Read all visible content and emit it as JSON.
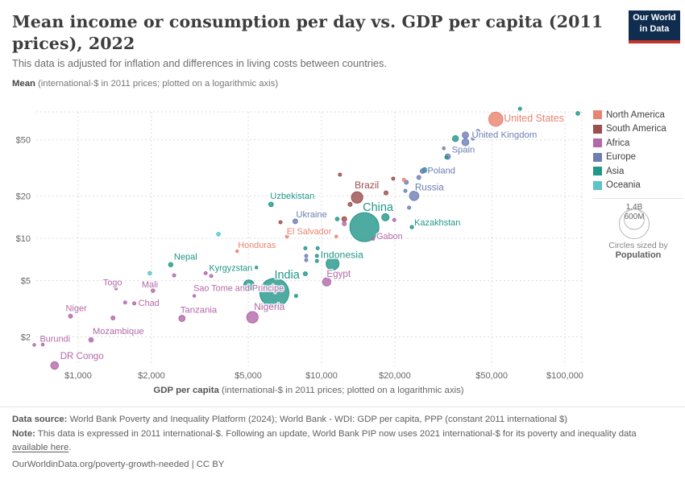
{
  "header": {
    "title": "Mean income or consumption per day vs. GDP per capita (2011 prices), 2022",
    "subtitle": "This data is adjusted for inflation and differences in living costs between countries.",
    "logo": {
      "line1": "Our World",
      "line2": "in Data",
      "bg": "#102d4f",
      "accent": "#c0362d"
    }
  },
  "y_axis_header": {
    "bold": "Mean",
    "rest": " (international-$ in 2011 prices; plotted on a logarithmic axis)"
  },
  "x_axis_title": {
    "bold": "GDP per capita",
    "rest": " (international-$ in 2011 prices; plotted on a logarithmic axis)"
  },
  "legend": {
    "items": [
      {
        "label": "North America",
        "color": "#E8836F"
      },
      {
        "label": "South America",
        "color": "#9A4E4E"
      },
      {
        "label": "Africa",
        "color": "#B368A9"
      },
      {
        "label": "Europe",
        "color": "#6D7EB5"
      },
      {
        "label": "Asia",
        "color": "#23968A"
      },
      {
        "label": "Oceania",
        "color": "#5CC3C7"
      }
    ]
  },
  "size_legend": {
    "outer_label": "1.4B",
    "inner_label": "600M",
    "caption": "Circles sized by",
    "caption_bold": "Population"
  },
  "footer": {
    "source_bold": "Data source:",
    "source_rest": " World Bank Poverty and Inequality Platform (2024); World Bank - WDI: GDP per capita, PPP (constant 2011 international $)",
    "note_bold": "Note:",
    "note_before_link": " This data is expressed in 2011 international-$. Following an update, World Bank PIP now uses 2021 international-$ for its poverty and inequality data ",
    "note_link": "available here",
    "note_after_link": ".",
    "url_line": "OurWorldinData.org/poverty-growth-needed | CC BY"
  },
  "chart_data": {
    "type": "scatter",
    "title": "Mean income or consumption per day vs. GDP per capita (2011 prices), 2022",
    "xlabel": "GDP per capita (international-$ in 2011 prices; plotted on a logarithmic axis)",
    "ylabel": "Mean (international-$ in 2011 prices; plotted on a logarithmic axis)",
    "x_scale": "log",
    "y_scale": "log",
    "x_range": [
      670,
      117000
    ],
    "y_range": [
      1.1,
      80
    ],
    "x_ticks": {
      "values": [
        1000,
        2000,
        5000,
        10000,
        20000,
        50000,
        100000
      ],
      "labels": [
        "$1,000",
        "$2,000",
        "$5,000",
        "$10,000",
        "$20,000",
        "$50,000",
        "$100,000"
      ]
    },
    "y_ticks": {
      "values": [
        2,
        5,
        10,
        20,
        50
      ],
      "labels": [
        "$2",
        "$5",
        "$10",
        "$20",
        "$50"
      ]
    },
    "grid": "dashed",
    "legend_position": "right",
    "size_by": "Population",
    "points": [
      {
        "label": "United States",
        "continent": "North America",
        "gdp": 52000,
        "mean": 70,
        "population": 335,
        "labelOffset": [
          10,
          3
        ],
        "labelAnchor": "start"
      },
      {
        "label": "United Kingdom",
        "continent": "Europe",
        "gdp": 39000,
        "mean": 54,
        "population": 67,
        "labelOffset": [
          8,
          3
        ],
        "labelAnchor": "start"
      },
      {
        "label": "Spain",
        "continent": "Europe",
        "gdp": 33000,
        "mean": 38,
        "population": 47.5,
        "labelOffset": [
          5,
          -5
        ],
        "labelAnchor": "start"
      },
      {
        "label": "Poland",
        "continent": "Europe",
        "gdp": 26000,
        "mean": 30,
        "population": 37,
        "labelOffset": [
          6,
          3
        ],
        "labelAnchor": "start"
      },
      {
        "label": "Russia",
        "continent": "Europe",
        "gdp": 24000,
        "mean": 20,
        "population": 144,
        "labelOffset": [
          1,
          -7
        ],
        "labelAnchor": "start"
      },
      {
        "label": "Brazil",
        "continent": "South America",
        "gdp": 14000,
        "mean": 19.5,
        "population": 215,
        "labelOffset": [
          -3,
          -11
        ],
        "labelAnchor": "start"
      },
      {
        "label": "China",
        "continent": "Asia",
        "gdp": 15000,
        "mean": 12,
        "population": 1412,
        "labelOffset": [
          -2,
          -20
        ],
        "labelAnchor": "start"
      },
      {
        "label": "Kazakhstan",
        "continent": "Asia",
        "gdp": 23500,
        "mean": 12,
        "population": 20,
        "labelOffset": [
          3,
          -2
        ],
        "labelAnchor": "start"
      },
      {
        "label": "Uzbekistan",
        "continent": "Asia",
        "gdp": 6200,
        "mean": 17.4,
        "population": 35,
        "labelOffset": [
          -1,
          -7
        ],
        "labelAnchor": "start"
      },
      {
        "label": "Ukraine",
        "continent": "Europe",
        "gdp": 7800,
        "mean": 13.2,
        "population": 38,
        "labelOffset": [
          1,
          -5
        ],
        "labelAnchor": "start"
      },
      {
        "label": "El Salvador",
        "continent": "North America",
        "gdp": 11500,
        "mean": 10.3,
        "population": 6.3,
        "labelOffset": [
          -6,
          -3
        ],
        "labelAnchor": "end"
      },
      {
        "label": "Honduras",
        "continent": "North America",
        "gdp": 4500,
        "mean": 8.1,
        "population": 10.4,
        "labelOffset": [
          1,
          -4
        ],
        "labelAnchor": "start"
      },
      {
        "label": "Gabon",
        "continent": "Africa",
        "gdp": 16300,
        "mean": 9.9,
        "population": 2.4,
        "labelOffset": [
          4,
          0
        ],
        "labelAnchor": "start"
      },
      {
        "label": "Indonesia",
        "continent": "Asia",
        "gdp": 11100,
        "mean": 6.6,
        "population": 275,
        "labelOffset": [
          -15,
          -7
        ],
        "labelAnchor": "start"
      },
      {
        "label": "Egypt",
        "continent": "Africa",
        "gdp": 10500,
        "mean": 4.9,
        "population": 111,
        "labelOffset": [
          0,
          -6
        ],
        "labelAnchor": "start"
      },
      {
        "label": "India",
        "continent": "Asia",
        "gdp": 6400,
        "mean": 4.1,
        "population": 1417,
        "labelOffset": [
          0,
          -18
        ],
        "labelAnchor": "start"
      },
      {
        "label": "Nepal",
        "continent": "Asia",
        "gdp": 2400,
        "mean": 6.5,
        "population": 30.5,
        "labelOffset": [
          4,
          -6
        ],
        "labelAnchor": "start"
      },
      {
        "label": "Kyrgyzstan",
        "continent": "Asia",
        "gdp": 5400,
        "mean": 6.2,
        "population": 7,
        "labelOffset": [
          -5,
          4
        ],
        "labelAnchor": "end"
      },
      {
        "label": "Togo",
        "continent": "Africa",
        "gdp": 1430,
        "mean": 4.4,
        "population": 8.8,
        "labelOffset": [
          -16,
          -4
        ],
        "labelAnchor": "start"
      },
      {
        "label": "Mali",
        "continent": "Africa",
        "gdp": 2030,
        "mean": 4.25,
        "population": 22.6,
        "labelOffset": [
          -14,
          -4
        ],
        "labelAnchor": "start"
      },
      {
        "label": "Sao Tome and Principe",
        "continent": "Africa",
        "gdp": 3000,
        "mean": 3.9,
        "population": 0.23,
        "labelOffset": [
          -1,
          -6
        ],
        "labelAnchor": "start"
      },
      {
        "label": "Chad",
        "continent": "Africa",
        "gdp": 1700,
        "mean": 3.45,
        "population": 17.7,
        "labelOffset": [
          5,
          3
        ],
        "labelAnchor": "start"
      },
      {
        "label": "Niger",
        "continent": "Africa",
        "gdp": 930,
        "mean": 2.8,
        "population": 26,
        "labelOffset": [
          -6,
          -6
        ],
        "labelAnchor": "start"
      },
      {
        "label": "Tanzania",
        "continent": "Africa",
        "gdp": 2670,
        "mean": 2.7,
        "population": 65,
        "labelOffset": [
          -2,
          -7
        ],
        "labelAnchor": "start"
      },
      {
        "label": "Nigeria",
        "continent": "Africa",
        "gdp": 5200,
        "mean": 2.75,
        "population": 218,
        "labelOffset": [
          2,
          -9
        ],
        "labelAnchor": "start"
      },
      {
        "label": "Mozambique",
        "continent": "Africa",
        "gdp": 1130,
        "mean": 1.9,
        "population": 33,
        "labelOffset": [
          2,
          -7
        ],
        "labelAnchor": "start"
      },
      {
        "label": "Burundi",
        "continent": "Africa",
        "gdp": 660,
        "mean": 1.75,
        "population": 13,
        "labelOffset": [
          7,
          -4
        ],
        "labelAnchor": "start"
      },
      {
        "label": "DR Congo",
        "continent": "Africa",
        "gdp": 800,
        "mean": 1.25,
        "population": 99,
        "labelOffset": [
          7,
          -8
        ],
        "labelAnchor": "start"
      },
      {
        "label": "",
        "continent": "Europe",
        "gdp": 39000,
        "mean": 48,
        "population": 80
      },
      {
        "label": "",
        "continent": "Asia",
        "gdp": 35500,
        "mean": 51,
        "population": 59
      },
      {
        "label": "",
        "continent": "Asia",
        "gdp": 32600,
        "mean": 37.5,
        "population": 17
      },
      {
        "label": "",
        "continent": "Europe",
        "gdp": 31800,
        "mean": 43.5,
        "population": 13
      },
      {
        "label": "",
        "continent": "Europe",
        "gdp": 41900,
        "mean": 51,
        "population": 17
      },
      {
        "label": "",
        "continent": "Europe",
        "gdp": 43900,
        "mean": 57.5,
        "population": 23
      },
      {
        "label": "",
        "continent": "Asia",
        "gdp": 65400,
        "mean": 83,
        "population": 17
      },
      {
        "label": "",
        "continent": "Asia",
        "gdp": 113000,
        "mean": 77,
        "population": 23
      },
      {
        "label": "",
        "continent": "Asia",
        "gdp": 26500,
        "mean": 30.5,
        "population": 39
      },
      {
        "label": "",
        "continent": "Europe",
        "gdp": 25100,
        "mean": 27,
        "population": 27
      },
      {
        "label": "",
        "continent": "Europe",
        "gdp": 22300,
        "mean": 25,
        "population": 27
      },
      {
        "label": "",
        "continent": "Europe",
        "gdp": 22100,
        "mean": 21.7,
        "population": 17
      },
      {
        "label": "",
        "continent": "Europe",
        "gdp": 22900,
        "mean": 16.5,
        "population": 17
      },
      {
        "label": "",
        "continent": "South America",
        "gdp": 18400,
        "mean": 21,
        "population": 27
      },
      {
        "label": "",
        "continent": "South America",
        "gdp": 19700,
        "mean": 26.5,
        "population": 17
      },
      {
        "label": "",
        "continent": "North America",
        "gdp": 21800,
        "mean": 26,
        "population": 17
      },
      {
        "label": "",
        "continent": "South America",
        "gdp": 11900,
        "mean": 28.3,
        "population": 17
      },
      {
        "label": "",
        "continent": "South America",
        "gdp": 13100,
        "mean": 17.4,
        "population": 27
      },
      {
        "label": "",
        "continent": "South America",
        "gdp": 12400,
        "mean": 13.7,
        "population": 39
      },
      {
        "label": "",
        "continent": "Africa",
        "gdp": 12400,
        "mean": 12.7,
        "population": 27
      },
      {
        "label": "",
        "continent": "Asia",
        "gdp": 11600,
        "mean": 13.7,
        "population": 23
      },
      {
        "label": "",
        "continent": "Asia",
        "gdp": 18300,
        "mean": 14.1,
        "population": 88
      },
      {
        "label": "",
        "continent": "Africa",
        "gdp": 19900,
        "mean": 13.5,
        "population": 17
      },
      {
        "label": "",
        "continent": "South America",
        "gdp": 6780,
        "mean": 13.0,
        "population": 17
      },
      {
        "label": "",
        "continent": "North America",
        "gdp": 7210,
        "mean": 10.3,
        "population": 17
      },
      {
        "label": "",
        "continent": "Oceania",
        "gdp": 3770,
        "mean": 10.7,
        "population": 23
      },
      {
        "label": "",
        "continent": "Asia",
        "gdp": 8580,
        "mean": 8.5,
        "population": 17
      },
      {
        "label": "",
        "continent": "Asia",
        "gdp": 9640,
        "mean": 8.5,
        "population": 17
      },
      {
        "label": "",
        "continent": "Europe",
        "gdp": 8650,
        "mean": 7.5,
        "population": 17
      },
      {
        "label": "",
        "continent": "Asia",
        "gdp": 9570,
        "mean": 7.5,
        "population": 17
      },
      {
        "label": "",
        "continent": "Europe",
        "gdp": 8650,
        "mean": 7.0,
        "population": 17
      },
      {
        "label": "",
        "continent": "Asia",
        "gdp": 9570,
        "mean": 6.9,
        "population": 17
      },
      {
        "label": "",
        "continent": "Asia",
        "gdp": 8580,
        "mean": 5.6,
        "population": 27
      },
      {
        "label": "",
        "continent": "Asia",
        "gdp": 7860,
        "mean": 3.9,
        "population": 17
      },
      {
        "label": "",
        "continent": "Asia",
        "gdp": 5030,
        "mean": 4.65,
        "population": 183
      },
      {
        "label": "",
        "continent": "Africa",
        "gdp": 3340,
        "mean": 5.65,
        "population": 17
      },
      {
        "label": "",
        "continent": "Africa",
        "gdp": 3520,
        "mean": 5.4,
        "population": 17
      },
      {
        "label": "",
        "continent": "Oceania",
        "gdp": 1970,
        "mean": 5.65,
        "population": 23
      },
      {
        "label": "",
        "continent": "Africa",
        "gdp": 2480,
        "mean": 5.45,
        "population": 17
      },
      {
        "label": "",
        "continent": "Africa",
        "gdp": 1560,
        "mean": 3.5,
        "population": 17
      },
      {
        "label": "",
        "continent": "Africa",
        "gdp": 1390,
        "mean": 2.72,
        "population": 27
      },
      {
        "label": "",
        "continent": "Africa",
        "gdp": 715,
        "mean": 1.76,
        "population": 14
      }
    ]
  }
}
